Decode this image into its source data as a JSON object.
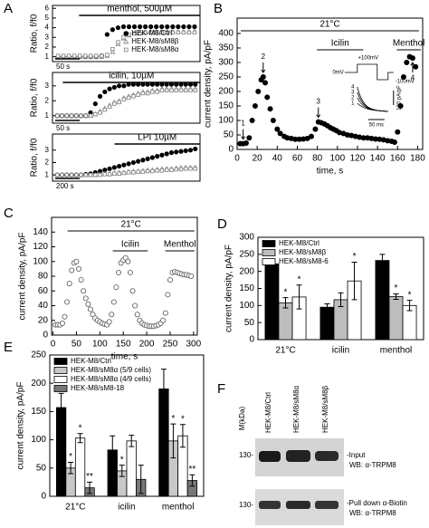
{
  "chart_data": [
    {
      "type": "scatter",
      "label": "A",
      "ylabel": "Ratio, f/f0",
      "ylim": [
        0.5,
        6.3
      ],
      "yticks": [
        1,
        2,
        3,
        4,
        5,
        6
      ],
      "stimulus": "menthol, 500µM",
      "scale_bar": "50 s",
      "legend": "lower right",
      "series": [
        {
          "name": "HEK-M8/Ctrl",
          "color": "#000000",
          "marker": "filled-circle",
          "values": [
            1,
            1,
            1,
            1,
            1,
            1,
            1,
            1,
            1.1,
            3.3,
            3.8,
            4.0,
            4.1,
            4.1,
            4.1,
            4.1,
            4.1,
            4.1,
            4.1,
            4.1,
            4.1,
            4.1,
            4.1,
            4.1,
            4.1,
            4.1
          ]
        },
        {
          "name": "HEK-M8/sM8β",
          "color": "#808080",
          "marker": "open-triangle",
          "values": [
            1,
            1,
            1,
            1,
            1,
            1,
            1,
            1,
            1,
            1.1,
            1.5,
            2.3,
            2.9,
            3.2,
            3.4,
            3.5,
            3.5,
            3.6,
            3.6,
            3.6,
            3.6,
            3.6,
            3.6,
            3.6,
            3.6,
            3.6
          ]
        },
        {
          "name": "HEK-M8/sM8α",
          "color": "#808080",
          "marker": "open-square",
          "values": [
            1.1,
            1.1,
            1.1,
            1.1,
            1.1,
            1.1,
            1.1,
            1.1,
            1.1,
            1.2,
            1.8,
            2.5,
            3.0,
            3.3,
            3.4,
            3.4,
            3.5,
            3.5,
            3.5,
            3.5,
            3.5,
            3.5,
            3.5,
            3.5,
            3.5,
            3.5
          ]
        }
      ]
    },
    {
      "type": "scatter",
      "ylabel": "Ratio, f/f0",
      "ylim": [
        0.5,
        3.9
      ],
      "yticks": [
        1,
        2,
        3
      ],
      "stimulus": "icilin, 10µM",
      "scale_bar": "50 s",
      "series": [
        {
          "color": "#000000",
          "marker": "filled-circle",
          "values": [
            1,
            1,
            1,
            1,
            1,
            1,
            1,
            1.2,
            1.8,
            2.3,
            2.6,
            2.8,
            2.9,
            3.0,
            3.0,
            3.1,
            3.1,
            3.1,
            3.1,
            3.1,
            3.1,
            3.1,
            3.1,
            3.1,
            3.1,
            3.1,
            3.1,
            3.1,
            3.1,
            3.1
          ]
        },
        {
          "color": "#808080",
          "marker": "open-triangle",
          "values": [
            1,
            1,
            1,
            1,
            1,
            1,
            1,
            1,
            1.1,
            1.3,
            1.5,
            1.7,
            1.9,
            2.0,
            2.2,
            2.3,
            2.4,
            2.5,
            2.6,
            2.6,
            2.7,
            2.7,
            2.8,
            2.8,
            2.8,
            2.8,
            2.8,
            2.8,
            2.8,
            2.8
          ]
        },
        {
          "color": "#808080",
          "marker": "open-square",
          "values": [
            1,
            1,
            1,
            1,
            1,
            1,
            1,
            1,
            1.1,
            1.2,
            1.4,
            1.6,
            1.8,
            1.9,
            2.1,
            2.2,
            2.3,
            2.4,
            2.5,
            2.5,
            2.6,
            2.6,
            2.7,
            2.7,
            2.7,
            2.7,
            2.7,
            2.7,
            2.7,
            2.7
          ]
        }
      ]
    },
    {
      "type": "scatter",
      "ylabel": "Ratio, f/f0",
      "ylim": [
        0.5,
        4.3
      ],
      "yticks": [
        1,
        2,
        3
      ],
      "stimulus": "LPI 10µM",
      "scale_bar": "200 s",
      "series": [
        {
          "color": "#000000",
          "marker": "filled-circle",
          "values": [
            1,
            1,
            1,
            1,
            1,
            1,
            1.05,
            1.1,
            1.2,
            1.3,
            1.4,
            1.5,
            1.6,
            1.7,
            1.8,
            1.9,
            2.0,
            2.1,
            2.2,
            2.3,
            2.4,
            2.5,
            2.6,
            2.7,
            2.8,
            2.85,
            2.9,
            2.95,
            3.0,
            3.1
          ]
        },
        {
          "color": "#808080",
          "marker": "open-triangle",
          "values": [
            1,
            1,
            1,
            1,
            1,
            1,
            1,
            1,
            1.0,
            1.05,
            1.1,
            1.1,
            1.15,
            1.2,
            1.2,
            1.25,
            1.3,
            1.3,
            1.35,
            1.4,
            1.4,
            1.45,
            1.5,
            1.5,
            1.5,
            1.55,
            1.6,
            1.6,
            1.6,
            1.6
          ]
        },
        {
          "color": "#808080",
          "marker": "open-square",
          "values": [
            1,
            1,
            1,
            1,
            1,
            1,
            1,
            1,
            1.0,
            1.0,
            1.05,
            1.05,
            1.1,
            1.1,
            1.15,
            1.2,
            1.2,
            1.25,
            1.25,
            1.3,
            1.3,
            1.35,
            1.35,
            1.4,
            1.4,
            1.45,
            1.45,
            1.5,
            1.5,
            1.5
          ]
        }
      ]
    },
    {
      "type": "scatter",
      "label": "B",
      "xlabel": "time, s",
      "ylabel": "current density, pA/pF",
      "xlim": [
        0,
        185
      ],
      "xticks": [
        0,
        20,
        40,
        60,
        80,
        100,
        120,
        140,
        160,
        180
      ],
      "ylim": [
        0,
        453
      ],
      "yticks": [
        0,
        50,
        100,
        150,
        200,
        250,
        300,
        350,
        400
      ],
      "x": [
        3,
        6,
        9,
        12,
        15,
        18,
        21,
        24,
        26,
        28,
        30,
        33,
        36,
        40,
        43,
        47,
        50,
        54,
        58,
        62,
        66,
        70,
        74,
        78,
        81,
        84,
        87,
        90,
        93,
        96,
        99,
        102,
        106,
        110,
        114,
        118,
        122,
        126,
        130,
        134,
        138,
        142,
        146,
        150,
        154,
        157,
        160,
        163,
        166,
        169,
        172,
        175,
        178
      ],
      "series": [
        {
          "color": "#000000",
          "marker": "filled-circle",
          "values": [
            20,
            20,
            22,
            40,
            100,
            150,
            200,
            240,
            250,
            230,
            180,
            140,
            100,
            70,
            55,
            45,
            40,
            38,
            35,
            35,
            36,
            38,
            45,
            70,
            95,
            92,
            88,
            82,
            75,
            70,
            65,
            58,
            55,
            50,
            48,
            45,
            42,
            40,
            40,
            38,
            36,
            35,
            33,
            30,
            28,
            25,
            60,
            150,
            250,
            300,
            320,
            315,
            285
          ]
        }
      ],
      "conditions": [
        "21°C",
        "Icilin",
        "Menthol"
      ],
      "point_labels": [
        "1",
        "2",
        "3",
        "4"
      ],
      "inset": {
        "voltages": [
          "+100mV",
          "0mV",
          "-100mV"
        ],
        "scale_y": "100 pA/pF",
        "scale_x": "50 ms",
        "traces": [
          "4",
          "3",
          "2",
          "1"
        ]
      }
    },
    {
      "type": "scatter",
      "label": "C",
      "xlabel": "time, s",
      "ylabel": "current density, pA/pF",
      "xlim": [
        -3,
        308
      ],
      "xticks": [
        0,
        50,
        100,
        150,
        200,
        250,
        300
      ],
      "ylim": [
        0,
        160
      ],
      "yticks": [
        0,
        20,
        40,
        60,
        80,
        100,
        120,
        140
      ],
      "x": [
        5,
        10,
        15,
        20,
        25,
        30,
        35,
        40,
        45,
        50,
        55,
        60,
        65,
        70,
        75,
        80,
        85,
        90,
        95,
        100,
        105,
        110,
        115,
        120,
        125,
        130,
        135,
        140,
        145,
        150,
        155,
        160,
        165,
        170,
        175,
        180,
        185,
        190,
        195,
        200,
        205,
        210,
        215,
        220,
        225,
        230,
        235,
        240,
        245,
        250,
        255,
        260,
        265,
        270,
        275,
        280,
        285,
        290,
        295
      ],
      "series": [
        {
          "color": "#555555",
          "marker": "open-circle",
          "values": [
            14,
            14,
            14,
            16,
            25,
            45,
            70,
            88,
            98,
            100,
            90,
            75,
            60,
            50,
            42,
            35,
            28,
            23,
            20,
            18,
            16,
            15,
            14,
            18,
            28,
            45,
            65,
            85,
            98,
            102,
            105,
            100,
            85,
            60,
            40,
            28,
            20,
            16,
            14,
            13,
            12,
            12,
            12,
            13,
            14,
            16,
            20,
            30,
            55,
            75,
            85,
            86,
            85,
            84,
            83,
            82,
            82,
            81,
            80
          ]
        }
      ],
      "conditions": [
        "21°C",
        "Icilin",
        "Menthol"
      ]
    },
    {
      "type": "bar",
      "label": "D",
      "ylabel": "current density, pA/pF",
      "legend": "upper left",
      "categories": [
        "21°C",
        "icilin",
        "menthol"
      ],
      "ylim": [
        0,
        300
      ],
      "yticks": [
        0,
        50,
        100,
        150,
        200,
        250,
        300
      ],
      "series": [
        {
          "name": "HEK-M8/Ctrl",
          "color": "#000000",
          "values": [
            222,
            95,
            232
          ],
          "errors": [
            6,
            10,
            18
          ]
        },
        {
          "name": "HEK-M8/sM8β",
          "color": "#bdbdbd",
          "values": [
            108,
            117,
            126
          ],
          "errors": [
            15,
            20,
            8
          ],
          "significance": [
            "*",
            null,
            "*"
          ]
        },
        {
          "name": "HEK-M8/sM8-6",
          "color": "#ffffff",
          "values": [
            125,
            172,
            100
          ],
          "errors": [
            35,
            55,
            15
          ],
          "significance": [
            "*",
            "*",
            "*"
          ]
        }
      ]
    },
    {
      "type": "bar",
      "label": "E",
      "ylabel": "current density, pA/pF",
      "legend": "upper left",
      "categories": [
        "21°C",
        "icilin",
        "menthol"
      ],
      "ylim": [
        0,
        250
      ],
      "yticks": [
        0,
        50,
        100,
        150,
        200,
        250
      ],
      "series": [
        {
          "name": "HEK-M8/Ctrl",
          "color": "#000000",
          "values": [
            157,
            82,
            190
          ],
          "errors": [
            25,
            25,
            35
          ]
        },
        {
          "name": "HEK-M8/sM8α (5/9 cells)",
          "color": "#c8c8c8",
          "values": [
            50,
            45,
            98
          ],
          "errors": [
            10,
            10,
            30
          ],
          "significance": [
            "*",
            "*",
            "*"
          ]
        },
        {
          "name": "HEK-M8/sM8α (4/9 cells)",
          "color": "#ffffff",
          "values": [
            103,
            98,
            107
          ],
          "errors": [
            8,
            10,
            20
          ],
          "significance": [
            "*",
            null,
            "*"
          ]
        },
        {
          "name": "HEK-M8/sM8-18",
          "color": "#777777",
          "values": [
            15,
            30,
            28
          ],
          "errors": [
            10,
            25,
            10
          ],
          "significance": [
            "**",
            null,
            "**"
          ]
        }
      ]
    }
  ],
  "blot": {
    "label": "F",
    "mass_label": "M(kDa)",
    "lanes": [
      "HEK-M8/Ctrl",
      "HEK-M8/sM8α",
      "HEK-M8/sM8β"
    ],
    "markers": [
      "130-",
      "130-"
    ],
    "rows": [
      {
        "name": "-Input",
        "antibody": "WB: α-TRPM8"
      },
      {
        "name": "-Pull down α-Biotin",
        "antibody": "WB: α-TRPM8"
      }
    ]
  }
}
